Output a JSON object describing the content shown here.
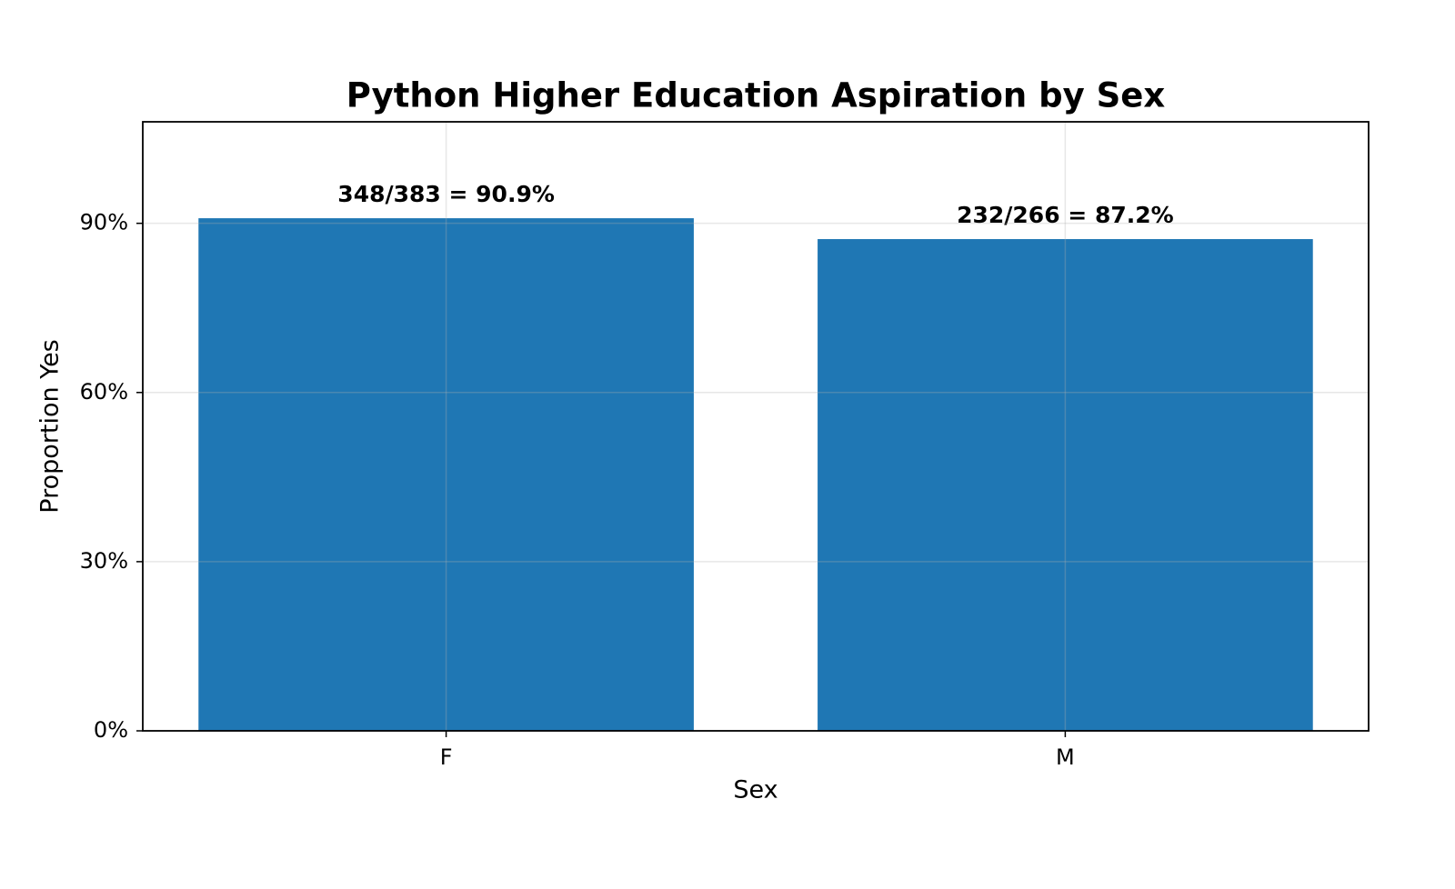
{
  "chart_data": {
    "type": "bar",
    "title": "Python Higher Education Aspiration by Sex",
    "x_label": "Sex",
    "y_label": "Proportion Yes",
    "categories": [
      "F",
      "M"
    ],
    "values": [
      90.9,
      87.2
    ],
    "value_labels": [
      "348/383 = 90.9%",
      "232/266 = 87.2%"
    ],
    "color": "#1f77b4",
    "ylim": [
      0,
      108
    ],
    "yticks": [
      {
        "value": 0,
        "label": "0%"
      },
      {
        "value": 30,
        "label": "30%"
      },
      {
        "value": 60,
        "label": "60%"
      },
      {
        "value": 90,
        "label": "90%"
      }
    ],
    "grid": true
  }
}
